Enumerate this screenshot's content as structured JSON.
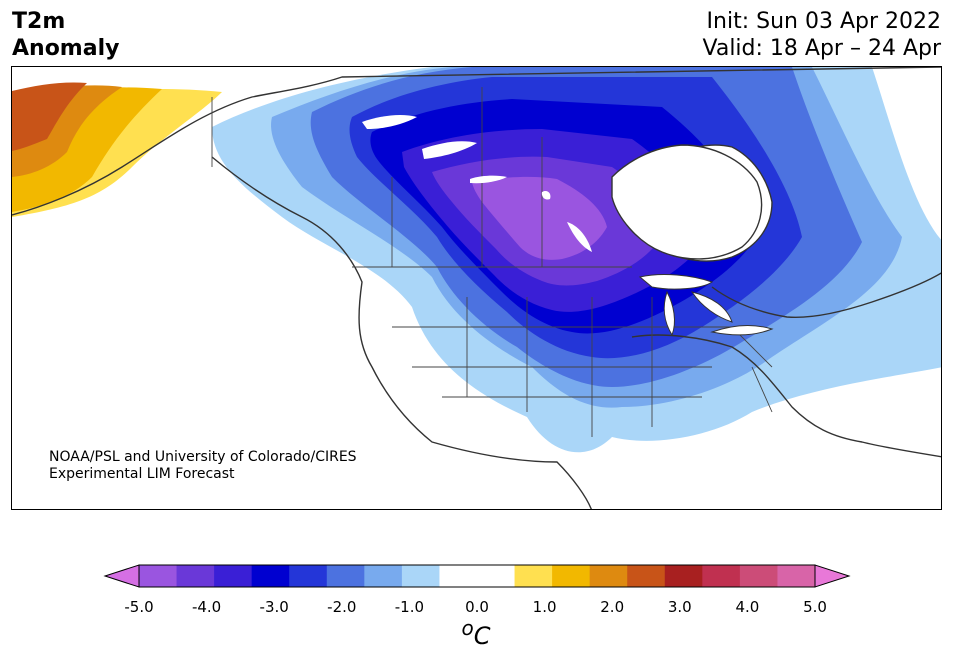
{
  "header": {
    "title_line1": "T2m",
    "title_line2": "Anomaly",
    "init": "Init: Sun 03 Apr 2022",
    "valid": "Valid: 18 Apr – 24 Apr"
  },
  "credit": {
    "line1": "NOAA/PSL and University of Colorado/CIRES",
    "line2": "Experimental LIM Forecast"
  },
  "colorbar": {
    "ticks": [
      "-5.0",
      "-4.0",
      "-3.0",
      "-2.0",
      "-1.0",
      "0.0",
      "1.0",
      "2.0",
      "3.0",
      "4.0",
      "5.0"
    ],
    "unit_sup": "o",
    "unit": "C",
    "colors": [
      "#d56fe4",
      "#9a55e0",
      "#6a38d8",
      "#3a1fd6",
      "#0000d0",
      "#2436d8",
      "#4c72e0",
      "#78aaee",
      "#aad6f8",
      "#ffffff",
      "#ffffff",
      "#ffe050",
      "#f2b800",
      "#de8a10",
      "#c85418",
      "#a82020",
      "#c03050",
      "#cc4c78",
      "#d864a8",
      "#e878d8"
    ]
  }
}
